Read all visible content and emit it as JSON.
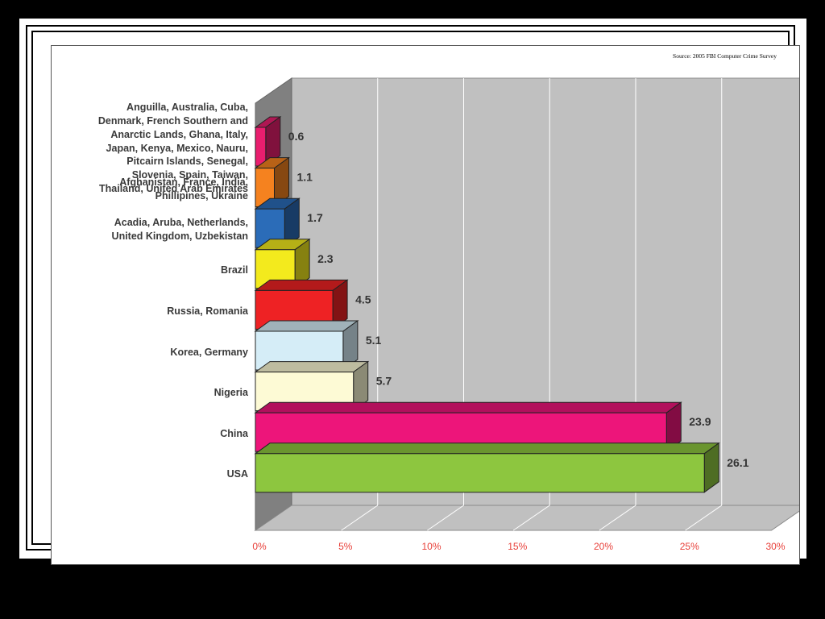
{
  "source": "Source: 2005 FBI Computer Crime Survey",
  "chart_data": {
    "type": "bar",
    "orientation": "horizontal",
    "three_d": true,
    "categories": [
      "Anguilla, Australia, Cuba, Denmark, French Southern and Anarctic Lands, Ghana, Italy, Japan, Kenya, Mexico, Nauru, Pitcairn Islands, Senegal, Slovenia, Spain, Taiwan, Thailand, United Arab Emirates",
      "Afghanistan, France, India, Phillipines, Ukraine",
      "Acadia, Aruba, Netherlands, United Kingdom, Uzbekistan",
      "Brazil",
      "Russia, Romania",
      "Korea, Germany",
      "Nigeria",
      "China",
      "USA"
    ],
    "category_lines": [
      [
        "Anguilla, Australia, Cuba,",
        "Denmark, French Southern and",
        "Anarctic Lands, Ghana, Italy,",
        "Japan, Kenya, Mexico, Nauru,",
        "Pitcairn Islands, Senegal,",
        "Slovenia, Spain, Taiwan,",
        "Thailand, United Arab Emirates"
      ],
      [
        "Afghanistan, France, India,",
        "Phillipines, Ukraine"
      ],
      [
        "Acadia, Aruba, Netherlands,",
        "United Kingdom, Uzbekistan"
      ],
      [
        "Brazil"
      ],
      [
        "Russia, Romania"
      ],
      [
        "Korea, Germany"
      ],
      [
        "Nigeria"
      ],
      [
        "China"
      ],
      [
        "USA"
      ]
    ],
    "values": [
      0.6,
      1.1,
      1.7,
      2.3,
      4.5,
      5.1,
      5.7,
      23.9,
      26.1
    ],
    "value_labels": [
      "0.6",
      "1.1",
      "1.7",
      "2.3",
      "4.5",
      "5.1",
      "5.7",
      "23.9",
      "26.1"
    ],
    "colors": [
      "#e91e6e",
      "#f5821f",
      "#2b6cb8",
      "#f3ea1d",
      "#ee2224",
      "#d5edf7",
      "#fdfad5",
      "#ed157a",
      "#8dc63f"
    ],
    "x_ticks": [
      "0%",
      "5%",
      "10%",
      "15%",
      "20%",
      "25%",
      "30%"
    ],
    "xlim": [
      0,
      30
    ],
    "grid": true,
    "tick_label_color": "#e8403a",
    "title": "",
    "xlabel": "",
    "ylabel": ""
  }
}
